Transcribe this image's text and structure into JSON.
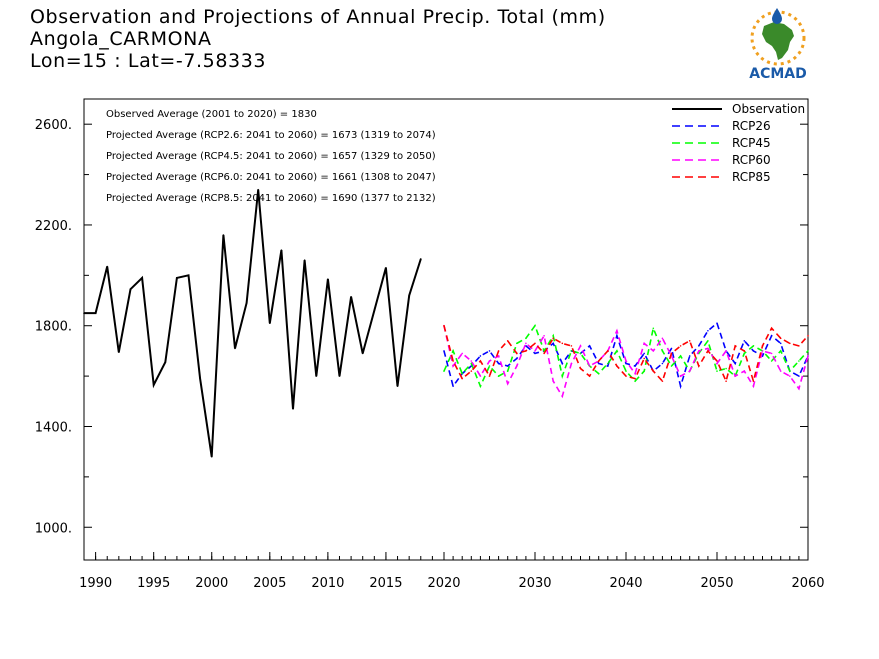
{
  "header": {
    "title_line1": "Observation and Projections of Annual Precip. Total (mm)",
    "title_line2": "Angola_CARMONA",
    "title_line3": "Lon=15 : Lat=-7.58333"
  },
  "logo": {
    "text": "ACMAD",
    "icon": "africa-map-logo-icon"
  },
  "chart_data": {
    "type": "line",
    "x_range": [
      1989,
      2060
    ],
    "y_range": [
      870,
      2700
    ],
    "y_ticks": [
      1000,
      1400,
      1800,
      2200,
      2600
    ],
    "y_tick_labels": [
      "1000.",
      "1400.",
      "1800.",
      "2200.",
      "2600."
    ],
    "x_ticks": [
      1990,
      1995,
      2000,
      2005,
      2010,
      2015,
      2020,
      2030,
      2040,
      2050,
      2060
    ],
    "x_tick_labels": [
      "1990",
      "1995",
      "2000",
      "2005",
      "2010",
      "2015",
      "2020",
      "2030",
      "2040",
      "2050",
      "2060"
    ],
    "annotations": [
      "Observed Average (2001 to 2020) = 1830",
      "Projected Average (RCP2.6: 2041 to 2060) = 1673 (1319 to 2074)",
      "Projected Average (RCP4.5: 2041 to 2060) = 1657 (1329 to 2050)",
      "Projected Average (RCP6.0: 2041 to 2060) = 1661 (1308 to 2047)",
      "Projected Average (RCP8.5: 2041 to 2060) = 1690 (1377 to 2132)"
    ],
    "legend_position": "top-right",
    "series": [
      {
        "name": "Observation",
        "color": "#000000",
        "style": "solid",
        "x": [
          1989,
          1990,
          1991,
          1992,
          1993,
          1994,
          1995,
          1996,
          1997,
          1998,
          1999,
          2000,
          2001,
          2002,
          2003,
          2004,
          2005,
          2006,
          2007,
          2008,
          2009,
          2010,
          2011,
          2012,
          2013,
          2014,
          2015,
          2016,
          2017,
          2018,
          2019,
          2020
        ],
        "y": [
          1850,
          1850,
          2035,
          1695,
          1945,
          1990,
          1565,
          1655,
          1990,
          2000,
          1590,
          1280,
          2160,
          1710,
          1890,
          2340,
          1810,
          2100,
          1470,
          2060,
          1600,
          1985,
          1600,
          1915,
          1690,
          1860,
          2030,
          1560,
          1920,
          2065,
          null,
          null
        ]
      },
      {
        "name": "RCP26",
        "color": "#0000ff",
        "style": "dashed",
        "x": [
          2020,
          2021,
          2022,
          2023,
          2024,
          2025,
          2026,
          2027,
          2028,
          2029,
          2030,
          2031,
          2032,
          2033,
          2034,
          2035,
          2036,
          2037,
          2038,
          2039,
          2040,
          2041,
          2042,
          2043,
          2044,
          2045,
          2046,
          2047,
          2048,
          2049,
          2050,
          2051,
          2052,
          2053,
          2054,
          2055,
          2056,
          2057,
          2058,
          2059,
          2060
        ],
        "y": [
          1700,
          1560,
          1610,
          1640,
          1680,
          1700,
          1650,
          1640,
          1670,
          1720,
          1690,
          1700,
          1730,
          1650,
          1700,
          1690,
          1720,
          1650,
          1640,
          1760,
          1650,
          1640,
          1690,
          1620,
          1650,
          1710,
          1560,
          1680,
          1720,
          1780,
          1810,
          1700,
          1650,
          1740,
          1700,
          1680,
          1760,
          1730,
          1620,
          1600,
          1680
        ]
      },
      {
        "name": "RCP45",
        "color": "#00ff00",
        "style": "dashed",
        "x": [
          2020,
          2021,
          2022,
          2023,
          2024,
          2025,
          2026,
          2027,
          2028,
          2029,
          2030,
          2031,
          2032,
          2033,
          2034,
          2035,
          2036,
          2037,
          2038,
          2039,
          2040,
          2041,
          2042,
          2043,
          2044,
          2045,
          2046,
          2047,
          2048,
          2049,
          2050,
          2051,
          2052,
          2053,
          2054,
          2055,
          2056,
          2057,
          2058,
          2059,
          2060
        ],
        "y": [
          1620,
          1700,
          1610,
          1650,
          1560,
          1640,
          1600,
          1620,
          1730,
          1750,
          1800,
          1700,
          1760,
          1600,
          1700,
          1690,
          1640,
          1610,
          1650,
          1700,
          1620,
          1580,
          1620,
          1790,
          1700,
          1640,
          1680,
          1620,
          1690,
          1740,
          1620,
          1630,
          1600,
          1690,
          1720,
          1700,
          1660,
          1700,
          1620,
          1660,
          1700
        ]
      },
      {
        "name": "RCP60",
        "color": "#ff00ff",
        "style": "dashed",
        "x": [
          2020,
          2021,
          2022,
          2023,
          2024,
          2025,
          2026,
          2027,
          2028,
          2029,
          2030,
          2031,
          2032,
          2033,
          2034,
          2035,
          2036,
          2037,
          2038,
          2039,
          2040,
          2041,
          2042,
          2043,
          2044,
          2045,
          2046,
          2047,
          2048,
          2049,
          2050,
          2051,
          2052,
          2053,
          2054,
          2055,
          2056,
          2057,
          2058,
          2059,
          2060
        ],
        "y": [
          1800,
          1640,
          1690,
          1660,
          1600,
          1660,
          1680,
          1570,
          1640,
          1730,
          1700,
          1760,
          1580,
          1520,
          1650,
          1720,
          1640,
          1660,
          1700,
          1780,
          1660,
          1610,
          1730,
          1700,
          1750,
          1680,
          1600,
          1620,
          1700,
          1710,
          1650,
          1700,
          1600,
          1620,
          1560,
          1700,
          1690,
          1620,
          1600,
          1550,
          1680
        ]
      },
      {
        "name": "RCP85",
        "color": "#ff0000",
        "style": "dashed",
        "x": [
          2020,
          2021,
          2022,
          2023,
          2024,
          2025,
          2026,
          2027,
          2028,
          2029,
          2030,
          2031,
          2032,
          2033,
          2034,
          2035,
          2036,
          2037,
          2038,
          2039,
          2040,
          2041,
          2042,
          2043,
          2044,
          2045,
          2046,
          2047,
          2048,
          2049,
          2050,
          2051,
          2052,
          2053,
          2054,
          2055,
          2056,
          2057,
          2058,
          2059,
          2060
        ],
        "y": [
          1800,
          1660,
          1590,
          1620,
          1660,
          1600,
          1700,
          1740,
          1690,
          1700,
          1730,
          1690,
          1750,
          1730,
          1720,
          1630,
          1600,
          1660,
          1700,
          1640,
          1600,
          1590,
          1670,
          1620,
          1580,
          1690,
          1720,
          1740,
          1640,
          1700,
          1660,
          1580,
          1720,
          1700,
          1580,
          1720,
          1790,
          1750,
          1730,
          1720,
          1760
        ]
      }
    ]
  }
}
